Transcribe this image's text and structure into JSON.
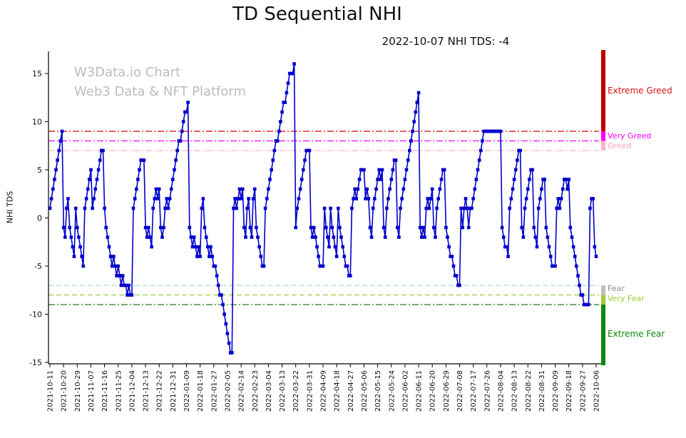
{
  "header": {
    "title": "TD Sequential NHI",
    "subtitle": "2022-10-07 NHI TDS: -4"
  },
  "watermark": {
    "line1": "W3Data.io Chart",
    "line2": "Web3 Data & NFT Platform"
  },
  "chart_data": {
    "type": "line",
    "title": "TD Sequential NHI",
    "subtitle": "2022-10-07 NHI TDS: -4",
    "ylabel": "NHI TDS",
    "ylim": [
      -15.15,
      17.3
    ],
    "y_ticks": [
      15,
      10,
      5,
      0,
      -5,
      -10,
      -15
    ],
    "x_start": "2021-10-11",
    "x_end": "2022-10-06",
    "x_tick_interval_days": 9,
    "x_tick_labels": [
      "2021-10-11",
      "2021-10-20",
      "2021-10-29",
      "2021-11-07",
      "2021-11-16",
      "2021-11-25",
      "2021-12-04",
      "2021-12-13",
      "2021-12-22",
      "2021-12-31",
      "2022-01-09",
      "2022-01-18",
      "2022-01-27",
      "2022-02-05",
      "2022-02-14",
      "2022-02-23",
      "2022-03-04",
      "2022-03-13",
      "2022-03-22",
      "2022-03-31",
      "2022-04-09",
      "2022-04-18",
      "2022-04-27",
      "2022-05-06",
      "2022-05-15",
      "2022-05-24",
      "2022-06-02",
      "2022-06-11",
      "2022-06-20",
      "2022-06-29",
      "2022-07-08",
      "2022-07-17",
      "2022-07-26",
      "2022-08-04",
      "2022-08-13",
      "2022-08-22",
      "2022-08-31",
      "2022-09-09",
      "2022-09-18",
      "2022-09-27",
      "2022-10-06"
    ],
    "line_color": "#0000cd",
    "marker": "square",
    "values": [
      1,
      2,
      3,
      4,
      5,
      6,
      7,
      8,
      9,
      -1,
      -2,
      1,
      2,
      -1,
      -2,
      -3,
      -4,
      1,
      -1,
      -2,
      -3,
      -4,
      -5,
      1,
      2,
      3,
      4,
      5,
      1,
      2,
      3,
      4,
      5,
      6,
      7,
      7,
      1,
      -1,
      -2,
      -3,
      -4,
      -5,
      -4,
      -5,
      -6,
      -5,
      -6,
      -7,
      -6,
      -7,
      -7,
      -8,
      -7,
      -8,
      -8,
      1,
      2,
      3,
      4,
      5,
      6,
      6,
      6,
      -1,
      -2,
      -1,
      -2,
      -3,
      1,
      2,
      3,
      2,
      3,
      -1,
      -2,
      -1,
      1,
      2,
      1,
      2,
      3,
      4,
      5,
      6,
      7,
      8,
      8,
      9,
      10,
      11,
      11,
      12,
      -1,
      -2,
      -3,
      -2,
      -3,
      -4,
      -3,
      -4,
      1,
      2,
      -1,
      -2,
      -3,
      -4,
      -3,
      -4,
      -5,
      -5,
      -6,
      -7,
      -8,
      -8,
      -9,
      -10,
      -11,
      -12,
      -13,
      -14,
      -14,
      1,
      2,
      1,
      2,
      3,
      2,
      3,
      -1,
      -2,
      1,
      2,
      -1,
      -2,
      2,
      3,
      -1,
      -2,
      -3,
      -4,
      -5,
      -5,
      1,
      2,
      3,
      4,
      5,
      6,
      7,
      8,
      8,
      9,
      10,
      11,
      12,
      12,
      13,
      14,
      15,
      15,
      15,
      16,
      -1,
      1,
      2,
      3,
      4,
      5,
      6,
      7,
      7,
      7,
      -1,
      -2,
      -1,
      -2,
      -3,
      -4,
      -5,
      -5,
      -5,
      1,
      -1,
      -2,
      -3,
      1,
      -1,
      -2,
      -3,
      -4,
      1,
      -1,
      -2,
      -3,
      -4,
      -5,
      -5,
      -6,
      -6,
      1,
      2,
      3,
      2,
      3,
      4,
      5,
      5,
      5,
      2,
      3,
      2,
      -1,
      -2,
      1,
      2,
      3,
      4,
      5,
      4,
      5,
      -1,
      -2,
      1,
      2,
      3,
      4,
      5,
      6,
      6,
      -1,
      -2,
      1,
      2,
      3,
      4,
      5,
      6,
      7,
      8,
      9,
      10,
      11,
      12,
      13,
      -1,
      -2,
      -1,
      -2,
      1,
      2,
      1,
      2,
      3,
      -1,
      -2,
      1,
      2,
      3,
      4,
      5,
      5,
      -1,
      -2,
      -3,
      -4,
      -4,
      -5,
      -6,
      -6,
      -7,
      -7,
      1,
      -1,
      1,
      2,
      1,
      -1,
      1,
      1,
      2,
      3,
      4,
      5,
      6,
      7,
      8,
      9,
      9,
      9,
      9,
      9,
      9,
      9,
      9,
      9,
      9,
      9,
      9,
      -1,
      -2,
      -3,
      -3,
      -4,
      1,
      2,
      3,
      4,
      5,
      6,
      7,
      7,
      -1,
      -2,
      1,
      2,
      3,
      4,
      5,
      5,
      -1,
      -2,
      -3,
      1,
      2,
      3,
      4,
      4,
      -1,
      -2,
      -3,
      -4,
      -5,
      -5,
      -5,
      1,
      2,
      1,
      2,
      3,
      4,
      4,
      3,
      4,
      -1,
      -2,
      -3,
      -4,
      -5,
      -6,
      -7,
      -8,
      -8,
      -9,
      -9,
      -9,
      -9,
      1,
      2,
      2,
      -3,
      -4
    ],
    "zones": [
      {
        "label": "Extreme Greed",
        "value": 9,
        "band": [
          null,
          9
        ],
        "dash": "dashdot",
        "line_color": "#e00000",
        "bar_color": "#c40000",
        "label_color": "#dc1414"
      },
      {
        "label": "Very Greed",
        "value": 8,
        "band": [
          9,
          8
        ],
        "dash": "dashdot",
        "line_color": "#ff00ff",
        "bar_color": "#ff00ff",
        "label_color": "#ff00ff"
      },
      {
        "label": "Greed",
        "value": 7,
        "band": [
          8,
          7
        ],
        "dash": "dashdot",
        "line_color": "#ffb3c1",
        "bar_color": "#ffb3c1",
        "label_color": "#ffa3b6"
      },
      {
        "label": "Fear",
        "value": -7,
        "band": [
          -7,
          -8
        ],
        "dash": "dashed",
        "line_color": "#a8d8c8",
        "bar_color": "#bfbfbf",
        "label_color": "#8c8c8c"
      },
      {
        "label": "Very Fear",
        "value": -8,
        "band": [
          -8,
          -9
        ],
        "dash": "dashed",
        "line_color": "#9acd32",
        "bar_color": "#9acd32",
        "label_color": "#9acd32"
      },
      {
        "label": "Extreme Fear",
        "value": -9,
        "band": [
          -9,
          null
        ],
        "dash": "dashdot",
        "line_color": "#1e7d1e",
        "bar_color": "#0c880c",
        "label_color": "#0c880c"
      }
    ]
  }
}
